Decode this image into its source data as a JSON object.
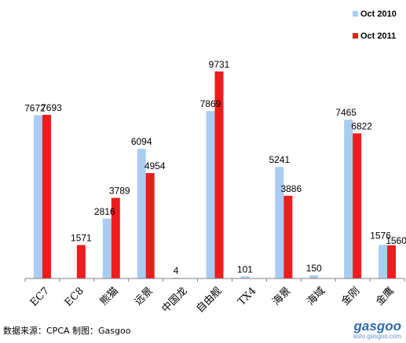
{
  "colors": {
    "oct2010": "#a9cdf2",
    "oct2011": "#ee1c1c",
    "axis": "#808080"
  },
  "source_text": "数据来源：CPCA  制图：Gasgoo",
  "watermark": {
    "logo": "gasgoo",
    "url": "auto.gasgoo.com"
  },
  "chart_data": {
    "type": "bar",
    "title": "",
    "xlabel": "",
    "ylabel": "",
    "ylim": [
      0,
      10500
    ],
    "grid": false,
    "legend_position": "top-right",
    "categories": [
      "EC7",
      "EC8",
      "熊猫",
      "远景",
      "中国龙",
      "自由舰",
      "TX4",
      "海景",
      "海域",
      "金刚",
      "金鹰"
    ],
    "series": [
      {
        "name": "Oct 2010",
        "values": [
          7672,
          null,
          2816,
          6094,
          4,
          7869,
          101,
          5241,
          150,
          7465,
          1576
        ]
      },
      {
        "name": "Oct 2011",
        "values": [
          7693,
          1571,
          3789,
          4954,
          null,
          9731,
          null,
          3886,
          null,
          6822,
          1560
        ]
      }
    ]
  }
}
